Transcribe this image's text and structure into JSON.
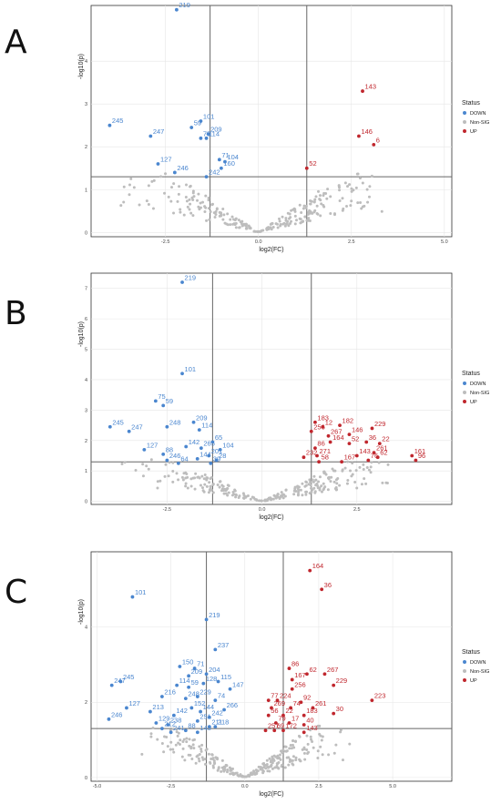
{
  "panel_letters": [
    "A",
    "B",
    "C"
  ],
  "colors": {
    "down": "#4a86cf",
    "non_sig": "#bdbdbd",
    "up": "#c0262d",
    "grid": "#e6e6e6",
    "threshold": "#666666"
  },
  "legend": {
    "title": "Status",
    "items": [
      "DOWN",
      "Non-SIG",
      "UP"
    ]
  },
  "chart_data": [
    {
      "type": "scatter",
      "panel": "A",
      "xlabel": "log2(FC)",
      "ylabel": "-log10(p)",
      "xlim": [
        -4.5,
        5.2
      ],
      "ylim": [
        -0.1,
        5.3
      ],
      "xticks": [
        -2.5,
        0.0,
        2.5,
        5.0
      ],
      "xtick_labels": [
        "-2.5",
        "0.0",
        "2.5",
        "5.0"
      ],
      "yticks": [
        0,
        1,
        2,
        3,
        4
      ],
      "thresholds": {
        "x": [
          -1.3,
          1.3
        ],
        "y": 1.3
      },
      "labeled_points": [
        {
          "label": "219",
          "x": -2.2,
          "y": 5.2,
          "status": "DOWN"
        },
        {
          "label": "245",
          "x": -4.0,
          "y": 2.5,
          "status": "DOWN"
        },
        {
          "label": "247",
          "x": -2.9,
          "y": 2.25,
          "status": "DOWN"
        },
        {
          "label": "101",
          "x": -1.55,
          "y": 2.6,
          "status": "DOWN"
        },
        {
          "label": "59",
          "x": -1.8,
          "y": 2.45,
          "status": "DOWN"
        },
        {
          "label": "209",
          "x": -1.35,
          "y": 2.3,
          "status": "DOWN"
        },
        {
          "label": "75",
          "x": -1.55,
          "y": 2.2,
          "status": "DOWN"
        },
        {
          "label": "114",
          "x": -1.4,
          "y": 2.2,
          "status": "DOWN"
        },
        {
          "label": "71",
          "x": -1.05,
          "y": 1.7,
          "status": "DOWN"
        },
        {
          "label": "104",
          "x": -0.9,
          "y": 1.65,
          "status": "DOWN"
        },
        {
          "label": "127",
          "x": -2.7,
          "y": 1.6,
          "status": "DOWN"
        },
        {
          "label": "246",
          "x": -2.25,
          "y": 1.4,
          "status": "DOWN"
        },
        {
          "label": "160",
          "x": -1.0,
          "y": 1.5,
          "status": "DOWN"
        },
        {
          "label": "242",
          "x": -1.4,
          "y": 1.3,
          "status": "DOWN"
        },
        {
          "label": "143",
          "x": 2.8,
          "y": 3.3,
          "status": "UP"
        },
        {
          "label": "146",
          "x": 2.7,
          "y": 2.25,
          "status": "UP"
        },
        {
          "label": "6",
          "x": 3.1,
          "y": 2.05,
          "status": "UP"
        },
        {
          "label": "52",
          "x": 1.3,
          "y": 1.5,
          "status": "UP"
        }
      ]
    },
    {
      "type": "scatter",
      "panel": "B",
      "xlabel": "log2(FC)",
      "ylabel": "-log10(p)",
      "xlim": [
        -4.5,
        5.0
      ],
      "ylim": [
        -0.1,
        7.5
      ],
      "xticks": [
        -2.5,
        0.0,
        2.5
      ],
      "xtick_labels": [
        "-2.5",
        "0.0",
        "2.5"
      ],
      "yticks": [
        0,
        1,
        2,
        3,
        4,
        5,
        6,
        7
      ],
      "thresholds": {
        "x": [
          -1.3,
          1.3
        ],
        "y": 1.3
      },
      "labeled_points": [
        {
          "label": "219",
          "x": -2.1,
          "y": 7.2,
          "status": "DOWN"
        },
        {
          "label": "101",
          "x": -2.1,
          "y": 4.2,
          "status": "DOWN"
        },
        {
          "label": "75",
          "x": -2.8,
          "y": 3.3,
          "status": "DOWN"
        },
        {
          "label": "59",
          "x": -2.6,
          "y": 3.15,
          "status": "DOWN"
        },
        {
          "label": "209",
          "x": -1.8,
          "y": 2.6,
          "status": "DOWN"
        },
        {
          "label": "248",
          "x": -2.5,
          "y": 2.45,
          "status": "DOWN"
        },
        {
          "label": "114",
          "x": -1.65,
          "y": 2.35,
          "status": "DOWN"
        },
        {
          "label": "245",
          "x": -4.0,
          "y": 2.45,
          "status": "DOWN"
        },
        {
          "label": "247",
          "x": -3.5,
          "y": 2.3,
          "status": "DOWN"
        },
        {
          "label": "65",
          "x": -1.3,
          "y": 1.95,
          "status": "DOWN"
        },
        {
          "label": "142",
          "x": -2.0,
          "y": 1.8,
          "status": "DOWN"
        },
        {
          "label": "265",
          "x": -1.6,
          "y": 1.75,
          "status": "DOWN"
        },
        {
          "label": "104",
          "x": -1.1,
          "y": 1.7,
          "status": "DOWN"
        },
        {
          "label": "127",
          "x": -3.1,
          "y": 1.7,
          "status": "DOWN"
        },
        {
          "label": "88",
          "x": -2.6,
          "y": 1.55,
          "status": "DOWN"
        },
        {
          "label": "201",
          "x": -1.4,
          "y": 1.5,
          "status": "DOWN"
        },
        {
          "label": "144",
          "x": -1.7,
          "y": 1.4,
          "status": "DOWN"
        },
        {
          "label": "28",
          "x": -1.2,
          "y": 1.35,
          "status": "DOWN"
        },
        {
          "label": "246",
          "x": -2.5,
          "y": 1.35,
          "status": "DOWN"
        },
        {
          "label": "64",
          "x": -2.2,
          "y": 1.25,
          "status": "DOWN"
        },
        {
          "label": "39",
          "x": -1.35,
          "y": 1.25,
          "status": "DOWN"
        },
        {
          "label": "183",
          "x": 1.4,
          "y": 2.6,
          "status": "UP"
        },
        {
          "label": "12",
          "x": 1.6,
          "y": 2.45,
          "status": "UP"
        },
        {
          "label": "182",
          "x": 2.05,
          "y": 2.5,
          "status": "UP"
        },
        {
          "label": "256",
          "x": 1.3,
          "y": 2.3,
          "status": "UP"
        },
        {
          "label": "267",
          "x": 1.75,
          "y": 2.15,
          "status": "UP"
        },
        {
          "label": "146",
          "x": 2.3,
          "y": 2.2,
          "status": "UP"
        },
        {
          "label": "229",
          "x": 2.9,
          "y": 2.4,
          "status": "UP"
        },
        {
          "label": "164",
          "x": 1.8,
          "y": 1.95,
          "status": "UP"
        },
        {
          "label": "52",
          "x": 2.3,
          "y": 1.9,
          "status": "UP"
        },
        {
          "label": "36",
          "x": 2.75,
          "y": 1.95,
          "status": "UP"
        },
        {
          "label": "22",
          "x": 3.1,
          "y": 1.9,
          "status": "UP"
        },
        {
          "label": "86",
          "x": 1.4,
          "y": 1.75,
          "status": "UP"
        },
        {
          "label": "261",
          "x": 2.95,
          "y": 1.6,
          "status": "UP"
        },
        {
          "label": "271",
          "x": 1.45,
          "y": 1.5,
          "status": "UP"
        },
        {
          "label": "232",
          "x": 1.1,
          "y": 1.45,
          "status": "UP"
        },
        {
          "label": "143",
          "x": 2.5,
          "y": 1.5,
          "status": "UP"
        },
        {
          "label": "62",
          "x": 3.05,
          "y": 1.45,
          "status": "UP"
        },
        {
          "label": "161",
          "x": 3.95,
          "y": 1.5,
          "status": "UP"
        },
        {
          "label": "76",
          "x": 2.8,
          "y": 1.35,
          "status": "UP"
        },
        {
          "label": "96",
          "x": 4.05,
          "y": 1.35,
          "status": "UP"
        },
        {
          "label": "58",
          "x": 1.5,
          "y": 1.3,
          "status": "UP"
        },
        {
          "label": "167",
          "x": 2.1,
          "y": 1.3,
          "status": "UP"
        }
      ]
    },
    {
      "type": "scatter",
      "panel": "C",
      "xlabel": "log2(FC)",
      "ylabel": "-log10(p)",
      "xlim": [
        -5.2,
        7.0
      ],
      "ylim": [
        -0.1,
        6.0
      ],
      "xticks": [
        -5.0,
        -2.5,
        0.0,
        2.5,
        5.0
      ],
      "xtick_labels": [
        "-5.0",
        "-2.5",
        "0.0",
        "2.5",
        "5.0"
      ],
      "yticks": [
        0,
        2,
        4
      ],
      "thresholds": {
        "x": [
          -1.3,
          1.3
        ],
        "y": 1.3
      },
      "labeled_points": [
        {
          "label": "164",
          "x": 2.2,
          "y": 5.5,
          "status": "UP"
        },
        {
          "label": "36",
          "x": 2.6,
          "y": 5.0,
          "status": "UP"
        },
        {
          "label": "101",
          "x": -3.8,
          "y": 4.8,
          "status": "DOWN"
        },
        {
          "label": "219",
          "x": -1.3,
          "y": 4.2,
          "status": "DOWN"
        },
        {
          "label": "237",
          "x": -1.0,
          "y": 3.4,
          "status": "DOWN"
        },
        {
          "label": "150",
          "x": -2.2,
          "y": 2.95,
          "status": "DOWN"
        },
        {
          "label": "71",
          "x": -1.7,
          "y": 2.9,
          "status": "DOWN"
        },
        {
          "label": "204",
          "x": -1.3,
          "y": 2.75,
          "status": "DOWN"
        },
        {
          "label": "209",
          "x": -1.9,
          "y": 2.7,
          "status": "DOWN"
        },
        {
          "label": "115",
          "x": -0.9,
          "y": 2.55,
          "status": "DOWN"
        },
        {
          "label": "128",
          "x": -1.4,
          "y": 2.5,
          "status": "DOWN"
        },
        {
          "label": "114",
          "x": -2.3,
          "y": 2.45,
          "status": "DOWN"
        },
        {
          "label": "59",
          "x": -1.9,
          "y": 2.4,
          "status": "DOWN"
        },
        {
          "label": "147",
          "x": -0.5,
          "y": 2.35,
          "status": "DOWN"
        },
        {
          "label": "245",
          "x": -4.2,
          "y": 2.55,
          "status": "DOWN"
        },
        {
          "label": "247",
          "x": -4.5,
          "y": 2.45,
          "status": "DOWN"
        },
        {
          "label": "216",
          "x": -2.8,
          "y": 2.15,
          "status": "DOWN"
        },
        {
          "label": "248",
          "x": -2.0,
          "y": 2.1,
          "status": "DOWN"
        },
        {
          "label": "229",
          "x": -1.6,
          "y": 2.15,
          "status": "DOWN"
        },
        {
          "label": "74",
          "x": -1.0,
          "y": 2.05,
          "status": "DOWN"
        },
        {
          "label": "152",
          "x": -1.8,
          "y": 1.85,
          "status": "DOWN"
        },
        {
          "label": "266",
          "x": -0.7,
          "y": 1.8,
          "status": "DOWN"
        },
        {
          "label": "127",
          "x": -4.0,
          "y": 1.85,
          "status": "DOWN"
        },
        {
          "label": "213",
          "x": -3.2,
          "y": 1.75,
          "status": "DOWN"
        },
        {
          "label": "144",
          "x": -1.5,
          "y": 1.75,
          "status": "DOWN"
        },
        {
          "label": "142",
          "x": -2.4,
          "y": 1.65,
          "status": "DOWN"
        },
        {
          "label": "242",
          "x": -1.2,
          "y": 1.6,
          "status": "DOWN"
        },
        {
          "label": "246",
          "x": -4.6,
          "y": 1.55,
          "status": "DOWN"
        },
        {
          "label": "129",
          "x": -3.0,
          "y": 1.45,
          "status": "DOWN"
        },
        {
          "label": "238",
          "x": -2.6,
          "y": 1.4,
          "status": "DOWN"
        },
        {
          "label": "251",
          "x": -1.6,
          "y": 1.5,
          "status": "DOWN"
        },
        {
          "label": "212",
          "x": -2.8,
          "y": 1.3,
          "status": "DOWN"
        },
        {
          "label": "241",
          "x": -2.5,
          "y": 1.2,
          "status": "DOWN"
        },
        {
          "label": "88",
          "x": -2.0,
          "y": 1.25,
          "status": "DOWN"
        },
        {
          "label": "143",
          "x": -1.6,
          "y": 1.2,
          "status": "DOWN"
        },
        {
          "label": "211",
          "x": -1.2,
          "y": 1.35,
          "status": "DOWN"
        },
        {
          "label": "218",
          "x": -1.0,
          "y": 1.35,
          "status": "DOWN"
        },
        {
          "label": "86",
          "x": 1.5,
          "y": 2.9,
          "status": "UP"
        },
        {
          "label": "62",
          "x": 2.1,
          "y": 2.75,
          "status": "UP"
        },
        {
          "label": "267",
          "x": 2.7,
          "y": 2.75,
          "status": "UP"
        },
        {
          "label": "167",
          "x": 1.6,
          "y": 2.6,
          "status": "UP"
        },
        {
          "label": "229",
          "x": 3.0,
          "y": 2.45,
          "status": "UP"
        },
        {
          "label": "256",
          "x": 1.6,
          "y": 2.35,
          "status": "UP"
        },
        {
          "label": "77",
          "x": 0.8,
          "y": 2.05,
          "status": "UP"
        },
        {
          "label": "224",
          "x": 1.1,
          "y": 2.05,
          "status": "UP"
        },
        {
          "label": "92",
          "x": 1.9,
          "y": 2.0,
          "status": "UP"
        },
        {
          "label": "269",
          "x": 0.9,
          "y": 1.85,
          "status": "UP"
        },
        {
          "label": "74",
          "x": 1.55,
          "y": 1.85,
          "status": "UP"
        },
        {
          "label": "261",
          "x": 2.3,
          "y": 1.85,
          "status": "UP"
        },
        {
          "label": "223",
          "x": 4.3,
          "y": 2.05,
          "status": "UP"
        },
        {
          "label": "56",
          "x": 0.8,
          "y": 1.65,
          "status": "UP"
        },
        {
          "label": "22",
          "x": 1.3,
          "y": 1.65,
          "status": "UP"
        },
        {
          "label": "183",
          "x": 2.0,
          "y": 1.65,
          "status": "UP"
        },
        {
          "label": "30",
          "x": 3.0,
          "y": 1.7,
          "status": "UP"
        },
        {
          "label": "79",
          "x": 1.05,
          "y": 1.45,
          "status": "UP"
        },
        {
          "label": "17",
          "x": 1.5,
          "y": 1.45,
          "status": "UP"
        },
        {
          "label": "40",
          "x": 2.0,
          "y": 1.4,
          "status": "UP"
        },
        {
          "label": "257",
          "x": 0.7,
          "y": 1.25,
          "status": "UP"
        },
        {
          "label": "69",
          "x": 1.0,
          "y": 1.25,
          "status": "UP"
        },
        {
          "label": "172",
          "x": 1.3,
          "y": 1.25,
          "status": "UP"
        },
        {
          "label": "143",
          "x": 2.0,
          "y": 1.2,
          "status": "UP"
        }
      ]
    }
  ]
}
